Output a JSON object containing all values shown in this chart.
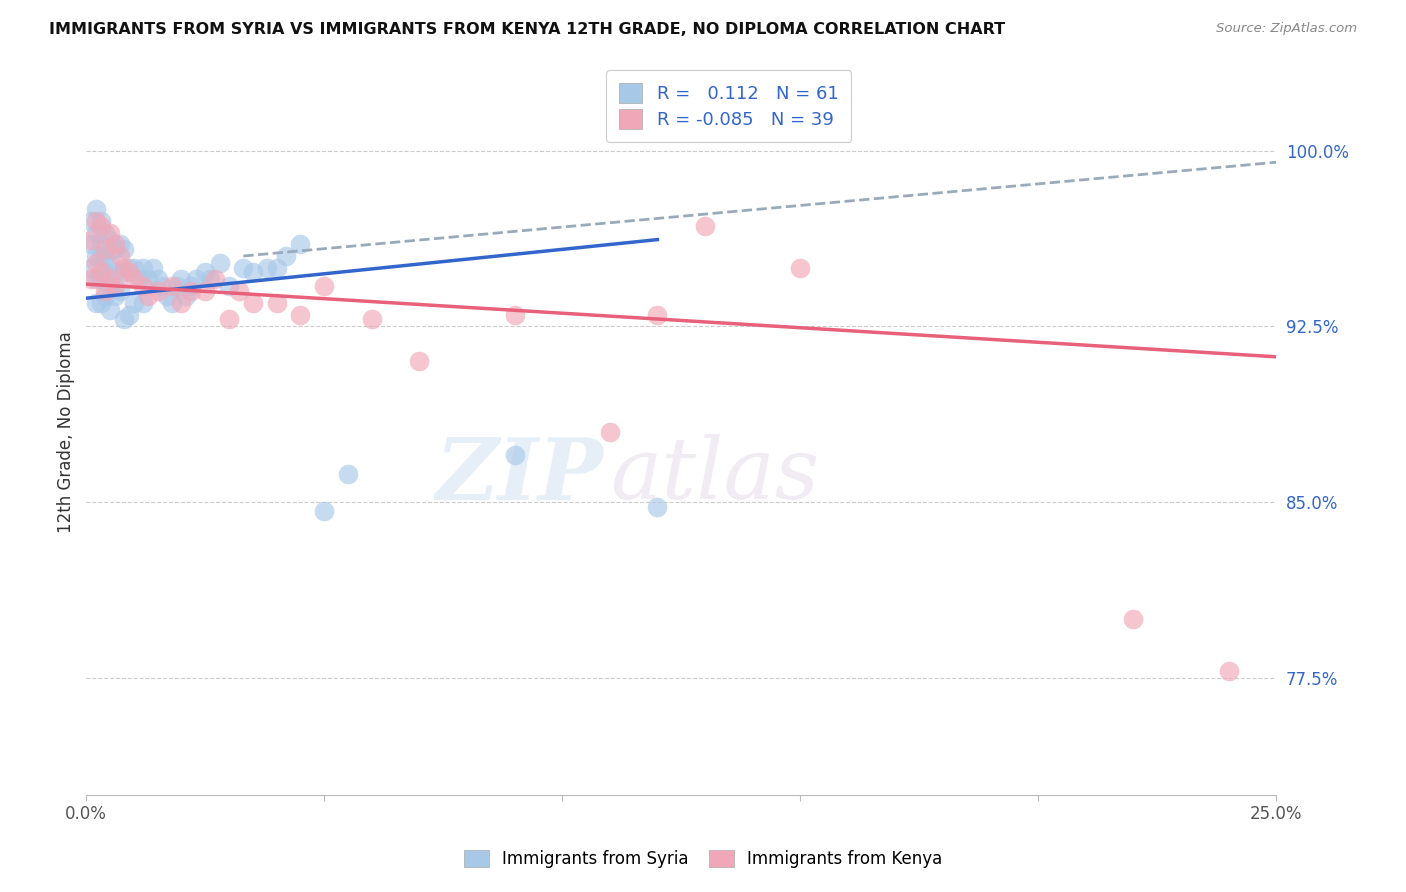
{
  "title": "IMMIGRANTS FROM SYRIA VS IMMIGRANTS FROM KENYA 12TH GRADE, NO DIPLOMA CORRELATION CHART",
  "source": "Source: ZipAtlas.com",
  "ylabel": "12th Grade, No Diploma",
  "ylabel_ticks": [
    "77.5%",
    "85.0%",
    "92.5%",
    "100.0%"
  ],
  "ylabel_tick_vals": [
    0.775,
    0.85,
    0.925,
    1.0
  ],
  "xlim": [
    0.0,
    0.25
  ],
  "ylim": [
    0.725,
    1.035
  ],
  "color_syria": "#a8c8e8",
  "color_kenya": "#f0a8b8",
  "color_line_syria": "#3366cc",
  "color_line_kenya": "#e8607a",
  "color_dashed": "#99aabb",
  "watermark_zip": "ZIP",
  "watermark_atlas": "atlas",
  "syria_x": [
    0.001,
    0.001,
    0.001,
    0.002,
    0.002,
    0.002,
    0.002,
    0.002,
    0.003,
    0.003,
    0.003,
    0.003,
    0.003,
    0.004,
    0.004,
    0.004,
    0.004,
    0.005,
    0.005,
    0.005,
    0.005,
    0.006,
    0.006,
    0.006,
    0.007,
    0.007,
    0.008,
    0.008,
    0.008,
    0.009,
    0.009,
    0.01,
    0.01,
    0.011,
    0.012,
    0.012,
    0.013,
    0.014,
    0.015,
    0.016,
    0.017,
    0.018,
    0.019,
    0.02,
    0.021,
    0.022,
    0.023,
    0.025,
    0.026,
    0.028,
    0.03,
    0.033,
    0.035,
    0.038,
    0.04,
    0.042,
    0.045,
    0.05,
    0.055,
    0.09,
    0.12
  ],
  "syria_y": [
    0.97,
    0.96,
    0.95,
    0.975,
    0.965,
    0.955,
    0.945,
    0.935,
    0.97,
    0.96,
    0.955,
    0.945,
    0.935,
    0.965,
    0.955,
    0.948,
    0.938,
    0.962,
    0.952,
    0.942,
    0.932,
    0.958,
    0.948,
    0.938,
    0.96,
    0.94,
    0.958,
    0.948,
    0.928,
    0.95,
    0.93,
    0.95,
    0.935,
    0.945,
    0.95,
    0.935,
    0.945,
    0.95,
    0.945,
    0.942,
    0.938,
    0.935,
    0.942,
    0.945,
    0.938,
    0.942,
    0.945,
    0.948,
    0.945,
    0.952,
    0.942,
    0.95,
    0.948,
    0.95,
    0.95,
    0.955,
    0.96,
    0.846,
    0.862,
    0.87,
    0.848
  ],
  "kenya_x": [
    0.001,
    0.001,
    0.002,
    0.002,
    0.003,
    0.003,
    0.004,
    0.004,
    0.005,
    0.005,
    0.006,
    0.006,
    0.007,
    0.008,
    0.009,
    0.01,
    0.012,
    0.013,
    0.015,
    0.018,
    0.02,
    0.022,
    0.025,
    0.027,
    0.03,
    0.032,
    0.035,
    0.04,
    0.045,
    0.05,
    0.06,
    0.07,
    0.09,
    0.11,
    0.12,
    0.13,
    0.15,
    0.22,
    0.24
  ],
  "kenya_y": [
    0.962,
    0.945,
    0.97,
    0.952,
    0.968,
    0.948,
    0.958,
    0.94,
    0.965,
    0.945,
    0.96,
    0.942,
    0.955,
    0.95,
    0.948,
    0.945,
    0.942,
    0.938,
    0.94,
    0.942,
    0.935,
    0.94,
    0.94,
    0.945,
    0.928,
    0.94,
    0.935,
    0.935,
    0.93,
    0.942,
    0.928,
    0.91,
    0.93,
    0.88,
    0.93,
    0.968,
    0.95,
    0.8,
    0.778
  ],
  "syria_line_x": [
    0.0,
    0.12
  ],
  "syria_line_y": [
    0.937,
    0.962
  ],
  "kenya_line_x": [
    0.0,
    0.25
  ],
  "kenya_line_y": [
    0.943,
    0.912
  ],
  "dashed_line_x": [
    0.033,
    0.25
  ],
  "dashed_line_y": [
    0.955,
    0.995
  ]
}
